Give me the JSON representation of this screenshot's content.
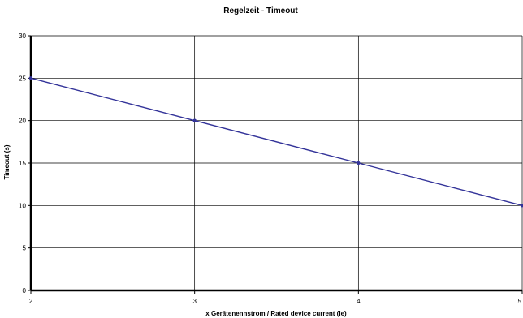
{
  "chart_data": {
    "type": "line",
    "title": "Regelzeit - Timeout",
    "xlabel": "x Gerätenennstrom / Rated device current (Ie)",
    "ylabel": "Timeout (s)",
    "xlim": [
      2,
      5
    ],
    "ylim": [
      0,
      30
    ],
    "xticks": [
      2,
      3,
      4,
      5
    ],
    "yticks": [
      0,
      5,
      10,
      15,
      20,
      25,
      30
    ],
    "grid": true,
    "x": [
      2,
      3,
      4,
      5
    ],
    "series": [
      {
        "values": [
          25,
          20,
          15,
          10
        ],
        "color": "#333399"
      }
    ],
    "colors": {
      "axis": "#000000",
      "grid": "#000000",
      "line": "#333399",
      "marker": "#333399"
    }
  }
}
